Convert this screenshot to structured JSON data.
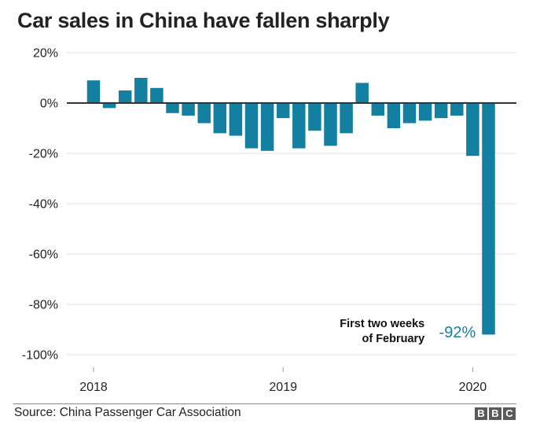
{
  "chart_data": {
    "type": "bar",
    "title": "Car sales in China have fallen sharply",
    "xlabel": "",
    "ylabel": "",
    "categories": [
      "Jan 2018",
      "Feb 2018",
      "Mar 2018",
      "Apr 2018",
      "May 2018",
      "Jun 2018",
      "Jul 2018",
      "Aug 2018",
      "Sep 2018",
      "Oct 2018",
      "Nov 2018",
      "Dec 2018",
      "Jan 2019",
      "Feb 2019",
      "Mar 2019",
      "Apr 2019",
      "May 2019",
      "Jun 2019",
      "Jul 2019",
      "Aug 2019",
      "Sep 2019",
      "Oct 2019",
      "Nov 2019",
      "Dec 2019",
      "Jan 2020",
      "Feb 2020 (first two weeks)"
    ],
    "values": [
      9,
      -2,
      5,
      10,
      6,
      -4,
      -5,
      -8,
      -12,
      -13,
      -18,
      -19,
      -6,
      -18,
      -11,
      -17,
      -12,
      8,
      -5,
      -10,
      -8,
      -7,
      -6,
      -5,
      -21,
      -92
    ],
    "unit": "%",
    "ylim": [
      -100,
      20
    ],
    "yticks": [
      20,
      0,
      -20,
      -40,
      -60,
      -80,
      -100
    ],
    "ytick_labels": [
      "20%",
      "0%",
      "-20%",
      "-40%",
      "-60%",
      "-80%",
      "-100%"
    ],
    "xticks": [
      {
        "label": "2018",
        "index": 0
      },
      {
        "label": "2019",
        "index": 12
      },
      {
        "label": "2020",
        "index": 24
      }
    ],
    "grid": true,
    "bar_color": "#1380a1",
    "annotation": {
      "lines": [
        "First two weeks",
        "of February"
      ],
      "value_label": "-92%",
      "target_index": 25
    }
  },
  "footer": {
    "source": "Source: China Passenger Car Association",
    "logo_letters": [
      "B",
      "B",
      "C"
    ]
  },
  "colors": {
    "bar": "#1380a1",
    "annotation_value": "#1380a1",
    "grid": "#dddddd",
    "zero_line": "#333333",
    "text": "#222222"
  }
}
